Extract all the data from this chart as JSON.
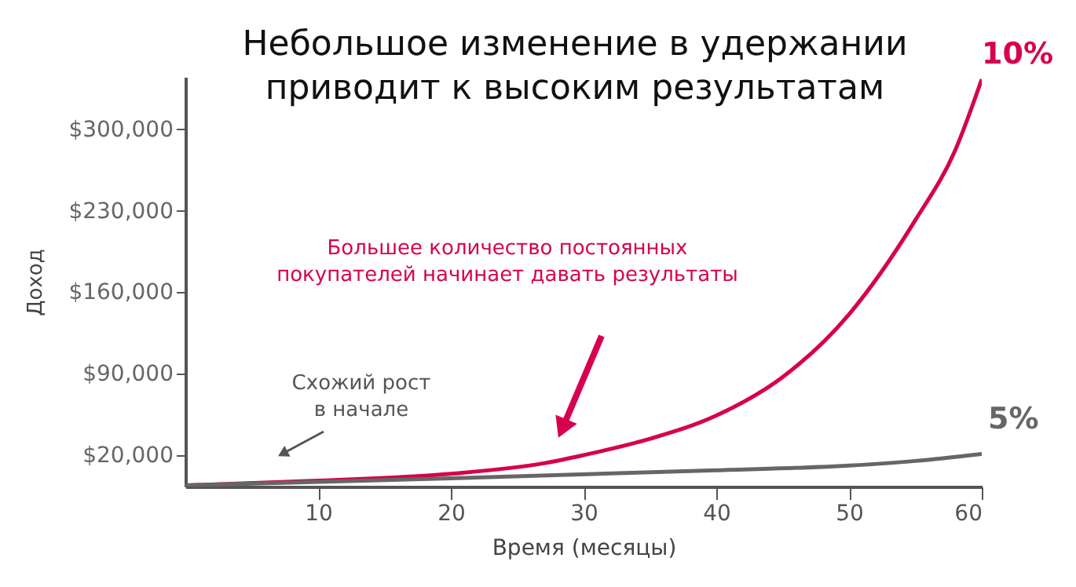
{
  "chart_data": {
    "type": "line",
    "title": "Небольшое изменение в удержании\nприводит к высоким результатам",
    "xlabel": "Время (месяцы)",
    "ylabel": "Доход",
    "xlim": [
      0,
      60
    ],
    "xticks": [
      10,
      20,
      30,
      40,
      50,
      60
    ],
    "ylim": [
      -7000,
      345000
    ],
    "yticks": [
      {
        "value": 20000,
        "label": "$20,000"
      },
      {
        "value": 90000,
        "label": "$90,000"
      },
      {
        "value": 160000,
        "label": "$160,000"
      },
      {
        "value": 230000,
        "label": "$230,000"
      },
      {
        "value": 300000,
        "label": "$300,000"
      }
    ],
    "grid": false,
    "marker": "none",
    "line_style": "solid",
    "series": [
      {
        "name": "10%",
        "color": "#d6004f",
        "x": [
          0,
          10,
          20,
          27,
          30,
          35,
          40,
          45,
          50,
          55,
          58,
          60
        ],
        "values": [
          -6000,
          -2000,
          4000,
          13000,
          20000,
          34000,
          54000,
          87000,
          141000,
          222000,
          282000,
          343000
        ]
      },
      {
        "name": "5%",
        "color": "#666666",
        "x": [
          0,
          20,
          40,
          50,
          55,
          60
        ],
        "values": [
          -6000,
          0,
          7000,
          11000,
          15000,
          21000
        ]
      }
    ],
    "annotations": [
      "Схожий рост\nв начале",
      "Большее количество постоянных\nпокупателей начинает давать результаты"
    ]
  }
}
